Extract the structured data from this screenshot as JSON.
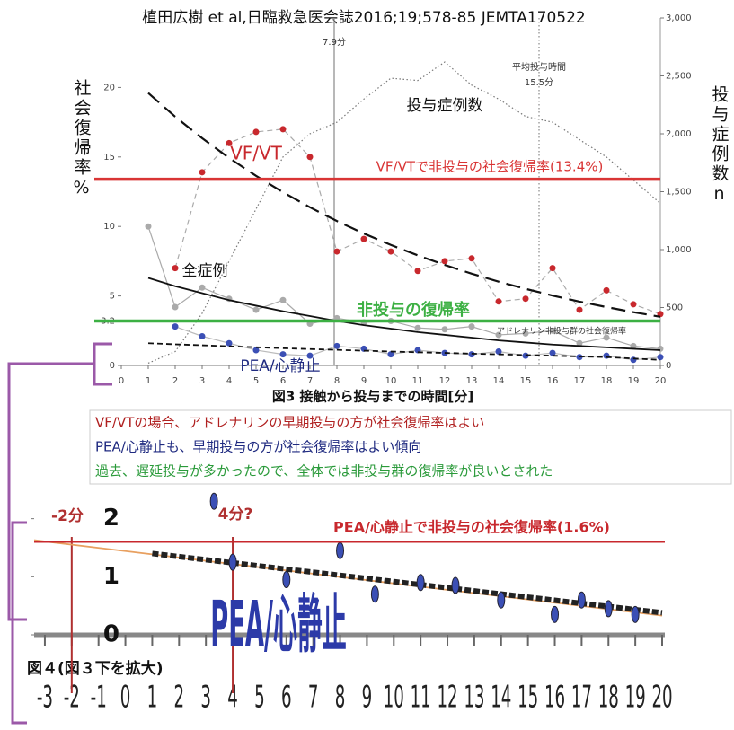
{
  "header": "植田広樹 et al,日臨救急医会誌2016;19;578-85 JEMTA170522",
  "notes": [
    "VF/VTの場合、アドレナリンの早期投与の方が社会復帰率はよい",
    "PEA/心静止も、早期投与の方が社会復帰率はよい傾向",
    "過去、遅延投与が多かったので、全体では非投与群の復帰率が良いとされた"
  ],
  "chart_data": [
    {
      "type": "line",
      "xlabel": "図3 接触から投与までの時間[分]",
      "ylabel": "社会復帰率%",
      "y2label": "投与症例数n",
      "xlim": [
        0,
        20
      ],
      "xticks": [
        0,
        1,
        2,
        3,
        4,
        5,
        6,
        7,
        8,
        9,
        10,
        11,
        12,
        13,
        14,
        15,
        16,
        17,
        18,
        19,
        20
      ],
      "ylim": [
        0,
        25
      ],
      "yticks": [
        0,
        3.2,
        5,
        10,
        15,
        20
      ],
      "y2lim": [
        0,
        3000
      ],
      "y2ticks": [
        0,
        500,
        {
          "value": 1000,
          "label": "1,000"
        },
        {
          "value": 1500,
          "label": "1,500"
        },
        {
          "value": 2000,
          "label": "2,000"
        },
        {
          "value": 2500,
          "label": "2,500"
        },
        {
          "value": 3000,
          "label": "3,000"
        }
      ],
      "x": [
        1,
        2,
        3,
        4,
        5,
        6,
        7,
        8,
        9,
        10,
        11,
        12,
        13,
        14,
        15,
        16,
        17,
        18,
        19,
        20
      ],
      "series": [
        {
          "name": "VF/VT",
          "color": "#c8282d",
          "line_color": "#aaaaaa",
          "line": "dashed",
          "marker": "circle",
          "values": [
            null,
            7,
            13.9,
            16,
            16.8,
            17,
            15,
            8.2,
            9.1,
            8.2,
            6.8,
            7.5,
            7.7,
            4.6,
            4.8,
            7,
            4,
            5.4,
            4.4,
            3.7
          ]
        },
        {
          "color": "#111111",
          "line": "longdash",
          "marker": "none",
          "values": [
            19.6,
            17.9,
            16.35,
            14.93,
            13.64,
            12.46,
            11.38,
            10.39,
            9.49,
            8.67,
            7.92,
            7.23,
            6.6,
            6.03,
            5.51,
            5.03,
            4.59,
            4.2,
            3.83,
            3.5
          ]
        },
        {
          "name": "全症例",
          "color": "#aaaaaa",
          "line_color": "#aaaaaa",
          "line": "solid",
          "marker": "circle",
          "values": [
            10,
            4.2,
            5.6,
            4.8,
            4,
            4.7,
            3,
            3.4,
            3.1,
            3.2,
            2.7,
            2.6,
            2.8,
            2.2,
            2.3,
            2.5,
            1.6,
            2,
            1.4,
            1.2
          ]
        },
        {
          "color": "#111111",
          "line": "solid",
          "marker": "none",
          "values": [
            6.3,
            5.7,
            5.2,
            4.7,
            4.3,
            3.9,
            3.55,
            3.2,
            2.9,
            2.65,
            2.4,
            2.2,
            2,
            1.8,
            1.65,
            1.5,
            1.4,
            1.3,
            1.2,
            1.1
          ]
        },
        {
          "name": "PEA/心静止",
          "color": "#3b4fb5",
          "line_color": "#bbbbbb",
          "line": "solid",
          "marker": "circle",
          "values": [
            null,
            2.8,
            2.1,
            1.6,
            1.1,
            0.8,
            0.7,
            1.4,
            1.2,
            0.8,
            1.1,
            0.9,
            0.8,
            1,
            0.7,
            0.9,
            0.6,
            0.7,
            0.4,
            0.6
          ]
        },
        {
          "color": "#111111",
          "line": "dashed",
          "marker": "none",
          "values": [
            1.6,
            1.52,
            1.45,
            1.38,
            1.31,
            1.24,
            1.18,
            1.12,
            1.06,
            1.0,
            0.95,
            0.9,
            0.85,
            0.8,
            0.75,
            0.7,
            0.65,
            0.6,
            0.5,
            0.4
          ]
        },
        {
          "name": "投与症例数",
          "axis": "y2",
          "color": "#777777",
          "line": "dotted",
          "marker": "none",
          "values": [
            20,
            120,
            450,
            900,
            1350,
            1800,
            2000,
            2100,
            2300,
            2480,
            2460,
            2620,
            2420,
            2300,
            2150,
            2100,
            1950,
            1800,
            1600,
            1400
          ]
        }
      ],
      "hlines": [
        {
          "value": 13.4,
          "label": "VF/VTで非投与の社会復帰率(13.4%)",
          "color": "#d93535"
        },
        {
          "value": 3.2,
          "label": "非投与の復帰率",
          "color": "#3cb043"
        }
      ],
      "vlines": [
        {
          "value": 7.9,
          "label": [
            "7.9分"
          ],
          "color": "#888888",
          "line": "solid"
        },
        {
          "value": 15.5,
          "label": [
            "平均投与時間",
            "15.5分"
          ],
          "color": "#888888",
          "line": "dotted"
        }
      ],
      "annotations": [
        "アドレナリン非投与群の社会復帰率"
      ]
    },
    {
      "type": "line",
      "title": "図４(図３下を拡大)",
      "xlim": [
        -3.4,
        20.1
      ],
      "xticks": [
        -3,
        -2,
        -1,
        0,
        1,
        2,
        3,
        4,
        5,
        6,
        7,
        8,
        9,
        10,
        11,
        12,
        13,
        14,
        15,
        16,
        17,
        18,
        19,
        20
      ],
      "ylim": [
        0,
        2.35
      ],
      "yticks": [
        0,
        1,
        2
      ],
      "series": [
        {
          "color": "#e8a060",
          "line": "solid",
          "marker": "none",
          "x": [
            -3.4,
            20
          ],
          "values": [
            1.63,
            0.33
          ]
        },
        {
          "color": "#222222",
          "line": "thickdash",
          "marker": "none",
          "x": [
            1,
            20
          ],
          "values": [
            1.4,
            0.38
          ]
        },
        {
          "color": "#3b4fb5",
          "line": "none",
          "marker": "oval",
          "x": [
            3.3,
            4,
            6,
            8,
            9.3,
            11,
            12.3,
            14,
            16,
            17,
            18,
            19
          ],
          "values": [
            2.3,
            1.25,
            0.95,
            1.45,
            0.7,
            0.9,
            0.85,
            0.6,
            0.35,
            0.6,
            0.45,
            0.35
          ]
        }
      ],
      "hlines": [
        {
          "value": 1.6,
          "label": "PEA/心静止で非投与の社会復帰率(1.6%)",
          "color": "#c8282d"
        }
      ],
      "vlines": [
        {
          "value": -2,
          "label": [
            "-2分"
          ],
          "color": "#b03030",
          "line": "solid"
        },
        {
          "value": 4,
          "label": [
            "4分?"
          ],
          "color": "#b03030",
          "line": "solid"
        }
      ],
      "annotations": [
        "PEA/心静止"
      ]
    }
  ]
}
